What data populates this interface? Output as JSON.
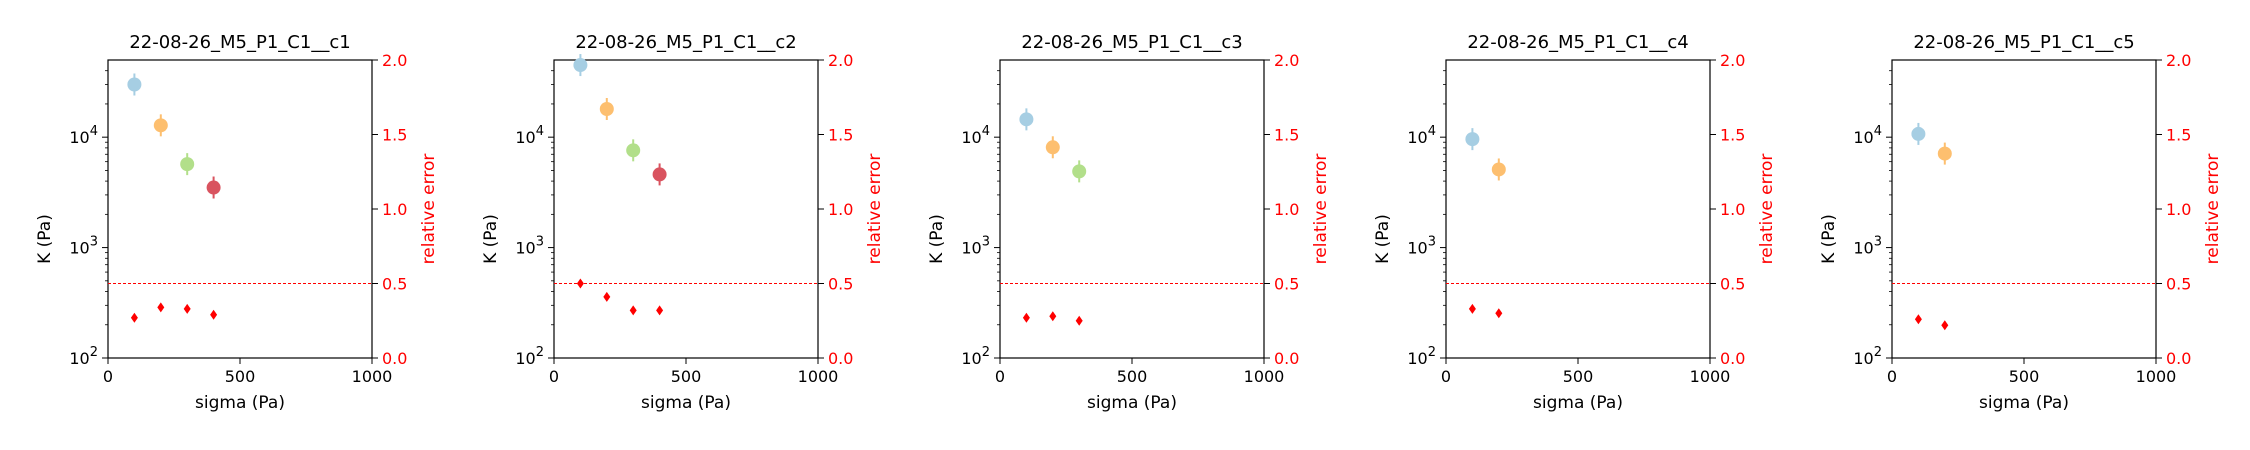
{
  "chart_data": [
    {
      "type": "scatter",
      "title": "22-08-26_M5_P1_C1__c1",
      "xlabel": "sigma (Pa)",
      "ylabel": "K (Pa)",
      "y2label": "relative error",
      "xlim": [
        0,
        1000
      ],
      "ylim": [
        100,
        50000
      ],
      "y2lim": [
        0,
        2
      ],
      "yscale": "log",
      "x_ticks": [
        "0",
        "500",
        "1000"
      ],
      "y_ticks": [
        "10^2",
        "10^3",
        "10^4"
      ],
      "y2_ticks": [
        "0.0",
        "0.5",
        "1.0",
        "1.5",
        "2.0"
      ],
      "threshold": 0.5,
      "points": [
        {
          "x": 100,
          "y": 30000,
          "color": "#a6cee3"
        },
        {
          "x": 200,
          "y": 12800,
          "color": "#fdbf6f"
        },
        {
          "x": 300,
          "y": 5700,
          "color": "#b2df8a"
        },
        {
          "x": 400,
          "y": 3500,
          "color": "#d9535f"
        }
      ],
      "errors": [
        {
          "x": 100,
          "y": 0.27
        },
        {
          "x": 200,
          "y": 0.34
        },
        {
          "x": 300,
          "y": 0.33
        },
        {
          "x": 400,
          "y": 0.29
        }
      ]
    },
    {
      "type": "scatter",
      "title": "22-08-26_M5_P1_C1__c2",
      "xlabel": "sigma (Pa)",
      "ylabel": "K (Pa)",
      "y2label": "relative error",
      "xlim": [
        0,
        1000
      ],
      "ylim": [
        100,
        50000
      ],
      "y2lim": [
        0,
        2
      ],
      "yscale": "log",
      "x_ticks": [
        "0",
        "500",
        "1000"
      ],
      "y_ticks": [
        "10^2",
        "10^3",
        "10^4"
      ],
      "y2_ticks": [
        "0.0",
        "0.5",
        "1.0",
        "1.5",
        "2.0"
      ],
      "threshold": 0.5,
      "points": [
        {
          "x": 100,
          "y": 45000,
          "color": "#a6cee3"
        },
        {
          "x": 200,
          "y": 18000,
          "color": "#fdbf6f"
        },
        {
          "x": 300,
          "y": 7600,
          "color": "#b2df8a"
        },
        {
          "x": 400,
          "y": 4600,
          "color": "#d9535f"
        }
      ],
      "errors": [
        {
          "x": 100,
          "y": 0.5
        },
        {
          "x": 200,
          "y": 0.41
        },
        {
          "x": 300,
          "y": 0.32
        },
        {
          "x": 400,
          "y": 0.32
        }
      ]
    },
    {
      "type": "scatter",
      "title": "22-08-26_M5_P1_C1__c3",
      "xlabel": "sigma (Pa)",
      "ylabel": "K (Pa)",
      "y2label": "relative error",
      "xlim": [
        0,
        1000
      ],
      "ylim": [
        100,
        50000
      ],
      "y2lim": [
        0,
        2
      ],
      "yscale": "log",
      "x_ticks": [
        "0",
        "500",
        "1000"
      ],
      "y_ticks": [
        "10^2",
        "10^3",
        "10^4"
      ],
      "y2_ticks": [
        "0.0",
        "0.5",
        "1.0",
        "1.5",
        "2.0"
      ],
      "threshold": 0.5,
      "points": [
        {
          "x": 100,
          "y": 14500,
          "color": "#a6cee3"
        },
        {
          "x": 200,
          "y": 8100,
          "color": "#fdbf6f"
        },
        {
          "x": 300,
          "y": 4900,
          "color": "#b2df8a"
        }
      ],
      "errors": [
        {
          "x": 100,
          "y": 0.27
        },
        {
          "x": 200,
          "y": 0.28
        },
        {
          "x": 300,
          "y": 0.25
        }
      ]
    },
    {
      "type": "scatter",
      "title": "22-08-26_M5_P1_C1__c4",
      "xlabel": "sigma (Pa)",
      "ylabel": "K (Pa)",
      "y2label": "relative error",
      "xlim": [
        0,
        1000
      ],
      "ylim": [
        100,
        50000
      ],
      "y2lim": [
        0,
        2
      ],
      "yscale": "log",
      "x_ticks": [
        "0",
        "500",
        "1000"
      ],
      "y_ticks": [
        "10^2",
        "10^3",
        "10^4"
      ],
      "y2_ticks": [
        "0.0",
        "0.5",
        "1.0",
        "1.5",
        "2.0"
      ],
      "threshold": 0.5,
      "points": [
        {
          "x": 100,
          "y": 9600,
          "color": "#a6cee3"
        },
        {
          "x": 200,
          "y": 5100,
          "color": "#fdbf6f"
        }
      ],
      "errors": [
        {
          "x": 100,
          "y": 0.33
        },
        {
          "x": 200,
          "y": 0.3
        }
      ]
    },
    {
      "type": "scatter",
      "title": "22-08-26_M5_P1_C1__c5",
      "xlabel": "sigma (Pa)",
      "ylabel": "K (Pa)",
      "y2label": "relative error",
      "xlim": [
        0,
        1000
      ],
      "ylim": [
        100,
        50000
      ],
      "y2lim": [
        0,
        2
      ],
      "yscale": "log",
      "x_ticks": [
        "0",
        "500",
        "1000"
      ],
      "y_ticks": [
        "10^2",
        "10^3",
        "10^4"
      ],
      "y2_ticks": [
        "0.0",
        "0.5",
        "1.0",
        "1.5",
        "2.0"
      ],
      "threshold": 0.5,
      "points": [
        {
          "x": 100,
          "y": 10700,
          "color": "#a6cee3"
        },
        {
          "x": 200,
          "y": 7100,
          "color": "#fdbf6f"
        }
      ],
      "errors": [
        {
          "x": 100,
          "y": 0.26
        },
        {
          "x": 200,
          "y": 0.22
        }
      ]
    }
  ]
}
